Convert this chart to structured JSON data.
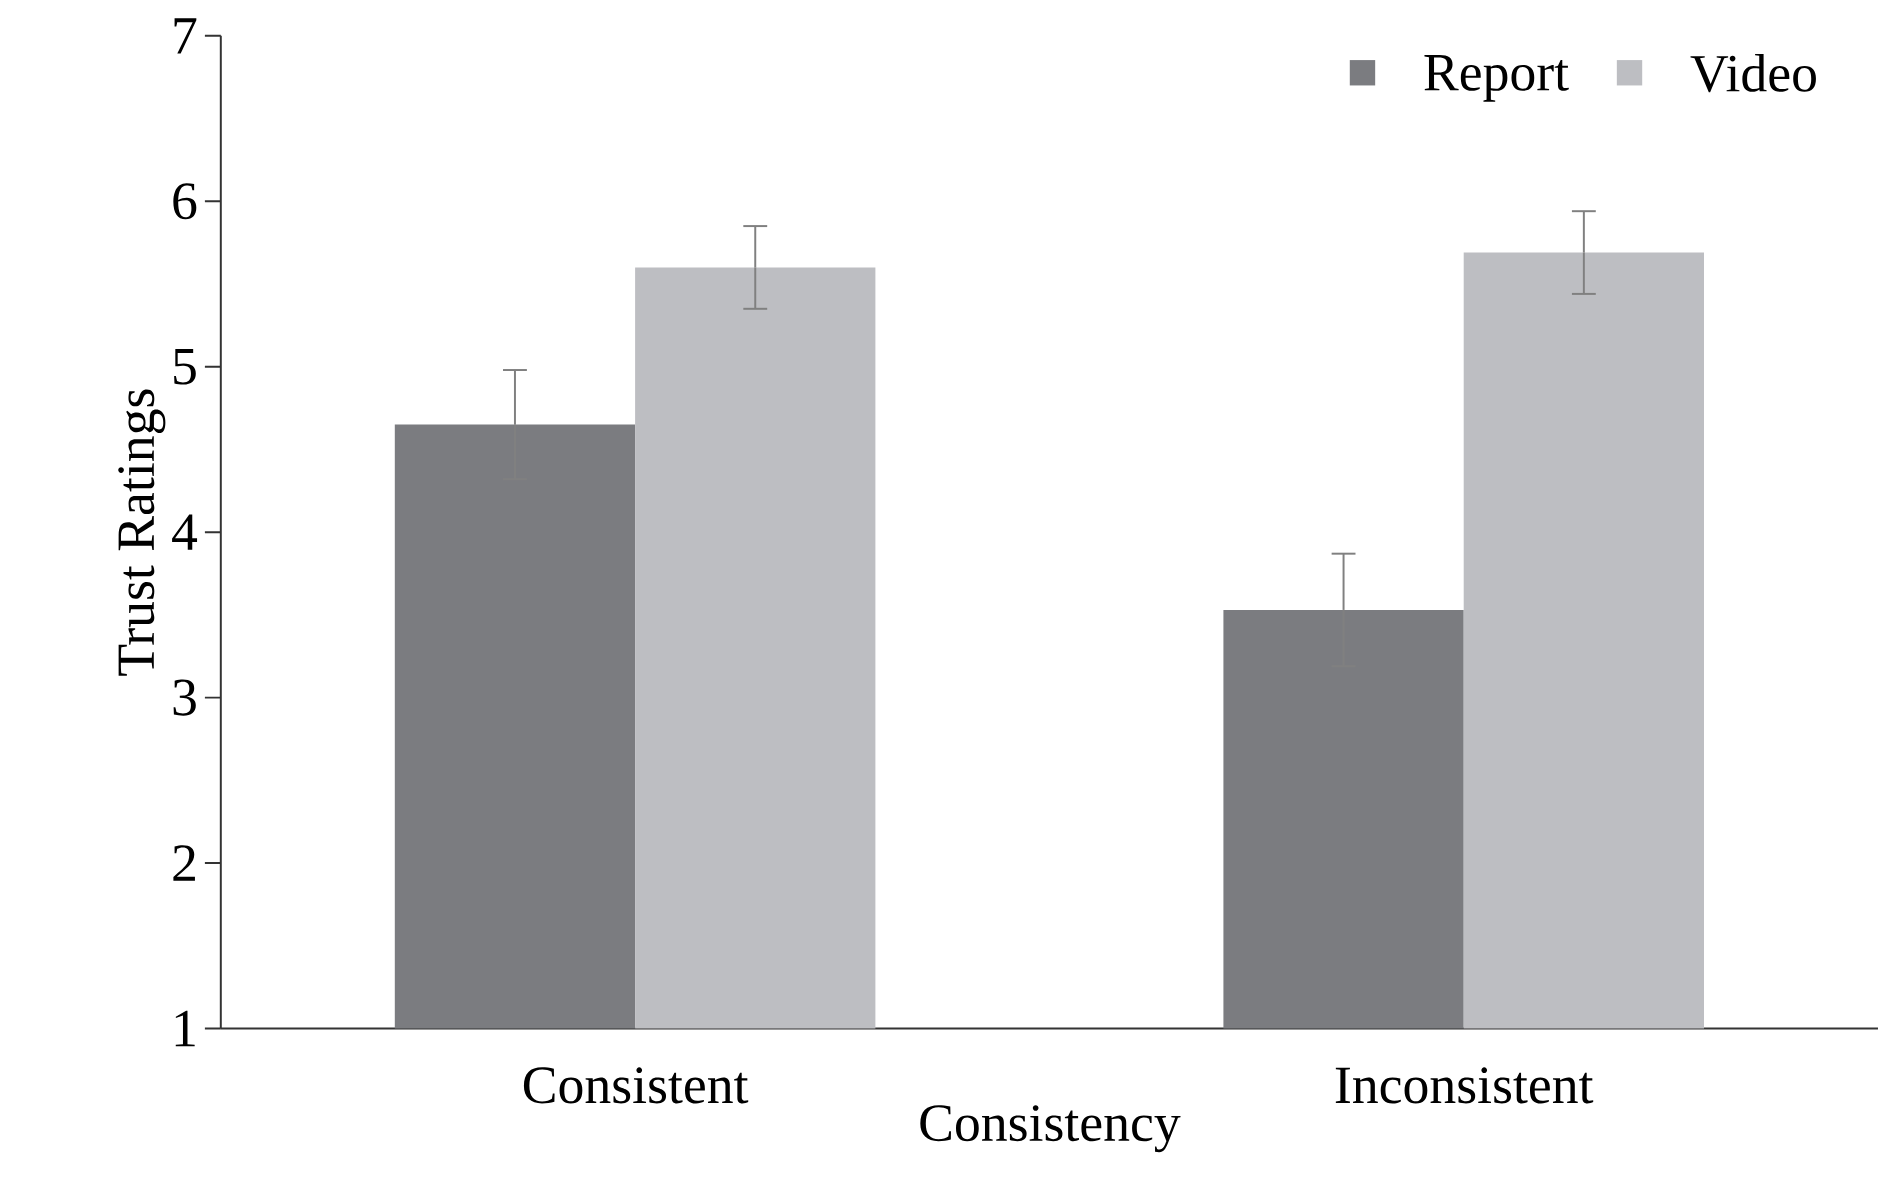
{
  "chart_data": {
    "type": "bar",
    "xlabel": "Consistency",
    "ylabel": "Trust Ratings",
    "categories": [
      "Consistent",
      "Inconsistent"
    ],
    "series": [
      {
        "name": "Report",
        "color": "#7b7c80",
        "values": [
          4.65,
          3.53
        ],
        "errors": [
          0.33,
          0.34
        ]
      },
      {
        "name": "Video",
        "color": "#bdbec2",
        "values": [
          5.6,
          5.69
        ],
        "errors": [
          0.25,
          0.25
        ]
      }
    ],
    "ylim": [
      1,
      7
    ],
    "yticks": [
      1,
      2,
      3,
      4,
      5,
      6,
      7
    ],
    "legend": "top right"
  }
}
